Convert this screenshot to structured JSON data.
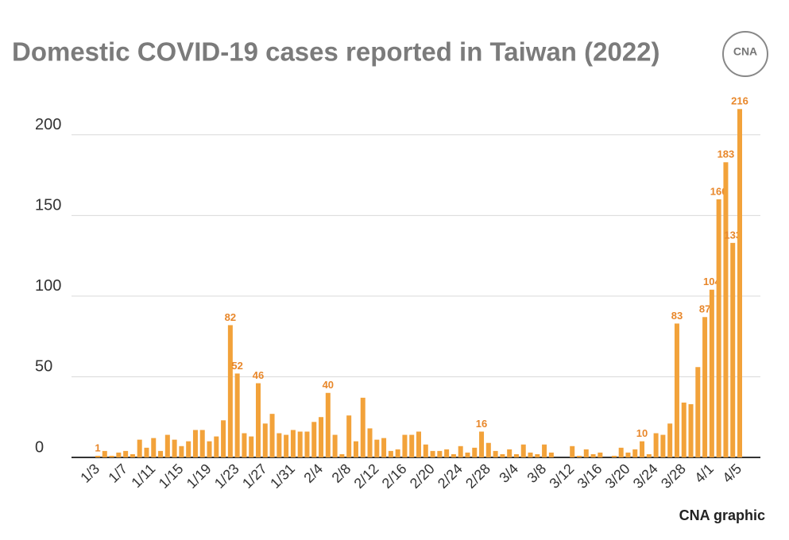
{
  "chart_data": {
    "type": "bar",
    "title": "Domestic COVID-19 cases reported in Taiwan (2022)",
    "source": "CNA graphic",
    "logo": "CNA",
    "color": "#f2a23a",
    "categories": [
      "1/3",
      null,
      null,
      null,
      "1/7",
      null,
      null,
      null,
      "1/11",
      null,
      null,
      null,
      "1/15",
      null,
      null,
      null,
      "1/19",
      null,
      null,
      null,
      "1/23",
      null,
      null,
      null,
      "1/27",
      null,
      null,
      null,
      "1/31",
      null,
      null,
      null,
      "2/4",
      null,
      null,
      null,
      "2/8",
      null,
      null,
      null,
      "2/12",
      null,
      null,
      null,
      "2/16",
      null,
      null,
      null,
      "2/20",
      null,
      null,
      null,
      "2/24",
      null,
      null,
      null,
      "2/28",
      null,
      null,
      null,
      "3/4",
      null,
      null,
      null,
      "3/8",
      null,
      null,
      null,
      "3/12",
      null,
      null,
      null,
      "3/16",
      null,
      null,
      null,
      "3/20",
      null,
      null,
      null,
      "3/24",
      null,
      null,
      null,
      "3/28",
      null,
      null,
      null,
      "4/1",
      null,
      null,
      null,
      "4/5"
    ],
    "values": [
      1,
      4,
      1,
      3,
      4,
      2,
      11,
      6,
      12,
      4,
      14,
      11,
      7,
      10,
      17,
      17,
      10,
      13,
      23,
      82,
      52,
      15,
      13,
      46,
      21,
      27,
      15,
      14,
      17,
      16,
      16,
      22,
      25,
      40,
      14,
      2,
      26,
      10,
      37,
      18,
      11,
      12,
      4,
      5,
      14,
      14,
      16,
      8,
      4,
      4,
      5,
      2,
      7,
      3,
      6,
      16,
      9,
      4,
      2,
      5,
      2,
      8,
      3,
      2,
      8,
      3,
      0,
      0,
      7,
      1,
      5,
      2,
      3,
      0,
      1,
      6,
      3,
      5,
      10,
      2,
      15,
      14,
      21,
      83,
      34,
      33,
      56,
      87,
      104,
      160,
      183,
      133,
      216
    ],
    "value_labels": [
      "1",
      null,
      null,
      null,
      null,
      null,
      null,
      null,
      null,
      null,
      null,
      null,
      null,
      null,
      null,
      null,
      null,
      null,
      null,
      "82",
      "52",
      null,
      null,
      "46",
      null,
      null,
      null,
      null,
      null,
      null,
      null,
      null,
      null,
      "40",
      null,
      null,
      null,
      null,
      null,
      null,
      null,
      null,
      null,
      null,
      null,
      null,
      null,
      null,
      null,
      null,
      null,
      null,
      null,
      null,
      null,
      "16",
      null,
      null,
      null,
      null,
      null,
      null,
      null,
      null,
      null,
      null,
      null,
      null,
      null,
      null,
      null,
      null,
      null,
      null,
      null,
      null,
      null,
      null,
      "10",
      null,
      null,
      null,
      null,
      "83",
      null,
      null,
      null,
      "87",
      "104",
      "160",
      "183",
      "133",
      "216"
    ],
    "ylim": [
      0,
      225
    ],
    "yticks": [
      0,
      50,
      100,
      150,
      200
    ],
    "grid": true
  }
}
